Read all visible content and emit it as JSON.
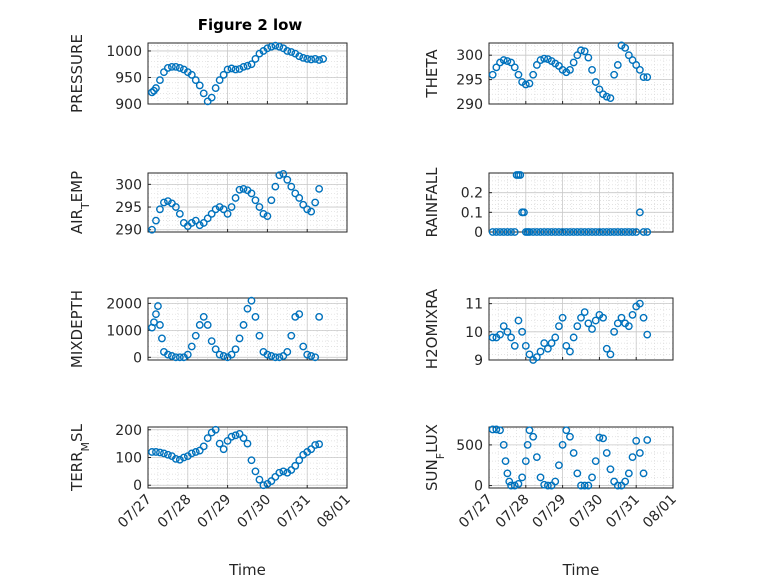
{
  "title": "Figure 2 low",
  "marker_color": "#0072BD",
  "x_tick_labels": [
    "07/27",
    "07/28",
    "07/29",
    "07/30",
    "07/31",
    "08/01"
  ],
  "chart_data": [
    {
      "type": "scatter",
      "ylabel": "PRESSURE",
      "ylim": [
        900,
        1015
      ],
      "yticks": [
        900,
        950,
        1000
      ],
      "xlabel": "Time",
      "grid": "on",
      "x": [
        0.1,
        0.15,
        0.2,
        0.3,
        0.4,
        0.5,
        0.6,
        0.7,
        0.8,
        0.9,
        1.0,
        1.1,
        1.2,
        1.3,
        1.4,
        1.5,
        1.6,
        1.7,
        1.8,
        1.9,
        2.0,
        2.1,
        2.2,
        2.3,
        2.4,
        2.5,
        2.6,
        2.7,
        2.8,
        2.9,
        3.0,
        3.1,
        3.2,
        3.3,
        3.4,
        3.5,
        3.6,
        3.7,
        3.8,
        3.9,
        4.0,
        4.1,
        4.2,
        4.3,
        4.4
      ],
      "y": [
        922,
        925,
        930,
        945,
        960,
        968,
        970,
        970,
        968,
        965,
        960,
        955,
        945,
        935,
        920,
        905,
        912,
        930,
        945,
        955,
        965,
        967,
        965,
        966,
        970,
        972,
        975,
        985,
        995,
        1000,
        1005,
        1008,
        1010,
        1008,
        1005,
        1000,
        998,
        995,
        990,
        987,
        985,
        984,
        985,
        983,
        985
      ]
    },
    {
      "type": "scatter",
      "ylabel": "THETA",
      "ylim": [
        290,
        302.5
      ],
      "yticks": [
        290,
        295,
        300
      ],
      "grid": "on",
      "x": [
        0.1,
        0.2,
        0.3,
        0.4,
        0.5,
        0.6,
        0.7,
        0.8,
        0.9,
        1.0,
        1.1,
        1.2,
        1.3,
        1.4,
        1.5,
        1.6,
        1.7,
        1.8,
        1.9,
        2.0,
        2.1,
        2.2,
        2.3,
        2.4,
        2.5,
        2.6,
        2.7,
        2.8,
        2.9,
        3.0,
        3.1,
        3.2,
        3.3,
        3.4,
        3.5,
        3.6,
        3.7,
        3.8,
        3.9,
        4.0,
        4.1,
        4.2,
        4.3
      ],
      "y": [
        296,
        297.5,
        298.5,
        299,
        298.8,
        298.5,
        297.5,
        296,
        294.5,
        294,
        294.2,
        296,
        298,
        299,
        299.3,
        299.2,
        298.8,
        298.3,
        297.8,
        297,
        296.5,
        297,
        298.5,
        300,
        301,
        300.8,
        299.5,
        297,
        294.5,
        293,
        292,
        291.5,
        291.2,
        296,
        298,
        302,
        301.5,
        300,
        299,
        298,
        297,
        295.5,
        295.5
      ]
    },
    {
      "type": "scatter",
      "ylabel": "AIR_TEMP",
      "ylim": [
        289.5,
        302.5
      ],
      "yticks": [
        290,
        295,
        300
      ],
      "grid": "on",
      "x": [
        0.1,
        0.2,
        0.3,
        0.4,
        0.5,
        0.6,
        0.7,
        0.8,
        0.9,
        1.0,
        1.1,
        1.2,
        1.3,
        1.4,
        1.5,
        1.6,
        1.7,
        1.8,
        1.9,
        2.0,
        2.1,
        2.2,
        2.3,
        2.4,
        2.5,
        2.6,
        2.7,
        2.8,
        2.9,
        3.0,
        3.1,
        3.2,
        3.3,
        3.4,
        3.5,
        3.6,
        3.7,
        3.8,
        3.9,
        4.0,
        4.1,
        4.2,
        4.3
      ],
      "y": [
        290,
        292,
        294.5,
        296,
        296.3,
        295.8,
        295,
        293.5,
        291.5,
        290.8,
        291.5,
        292,
        291,
        291.5,
        292.5,
        293.5,
        294.5,
        295,
        294.5,
        293.5,
        295,
        297,
        298.8,
        299,
        298.7,
        298,
        296.5,
        295,
        293.5,
        293,
        296.5,
        299.5,
        302,
        302.3,
        301,
        299.5,
        298,
        297,
        295.5,
        294.5,
        294,
        296,
        299
      ]
    },
    {
      "type": "scatter",
      "ylabel": "RAINFALL",
      "ylim": [
        0,
        0.3
      ],
      "yticks": [
        0,
        0.1,
        0.2
      ],
      "ytick_labels": [
        "0",
        "0.1",
        "0.2"
      ],
      "grid": "on",
      "x": [
        0.1,
        0.2,
        0.3,
        0.4,
        0.5,
        0.6,
        0.7,
        0.75,
        0.8,
        0.85,
        0.9,
        0.95,
        1.0,
        1.05,
        1.1,
        1.2,
        1.3,
        1.4,
        1.5,
        1.6,
        1.7,
        1.8,
        1.9,
        2.0,
        2.1,
        2.2,
        2.3,
        2.4,
        2.5,
        2.6,
        2.7,
        2.8,
        2.9,
        3.0,
        3.1,
        3.2,
        3.3,
        3.4,
        3.5,
        3.6,
        3.7,
        3.8,
        3.9,
        4.0,
        4.1,
        4.2,
        4.3
      ],
      "y": [
        0,
        0,
        0,
        0,
        0,
        0,
        0,
        0.29,
        0.29,
        0.29,
        0.1,
        0.1,
        0,
        0,
        0,
        0,
        0,
        0,
        0,
        0,
        0,
        0,
        0,
        0,
        0,
        0,
        0,
        0,
        0,
        0,
        0,
        0,
        0,
        0,
        0,
        0,
        0,
        0,
        0,
        0,
        0,
        0,
        0,
        0,
        0.1,
        0,
        0
      ]
    },
    {
      "type": "scatter",
      "ylabel": "MIXDEPTH",
      "ylim": [
        -100,
        2200
      ],
      "yticks": [
        0,
        1000,
        2000
      ],
      "grid": "on",
      "x": [
        0.1,
        0.15,
        0.2,
        0.25,
        0.3,
        0.35,
        0.4,
        0.5,
        0.6,
        0.7,
        0.8,
        0.9,
        1.0,
        1.1,
        1.2,
        1.3,
        1.4,
        1.5,
        1.6,
        1.7,
        1.8,
        1.9,
        2.0,
        2.1,
        2.2,
        2.3,
        2.4,
        2.5,
        2.6,
        2.7,
        2.8,
        2.9,
        3.0,
        3.1,
        3.2,
        3.3,
        3.4,
        3.5,
        3.6,
        3.7,
        3.8,
        3.9,
        4.0,
        4.1,
        4.2,
        4.3
      ],
      "y": [
        1100,
        1300,
        1600,
        1900,
        1200,
        700,
        200,
        100,
        50,
        0,
        0,
        0,
        100,
        400,
        800,
        1200,
        1500,
        1200,
        600,
        300,
        100,
        50,
        0,
        100,
        300,
        700,
        1200,
        1800,
        2100,
        1500,
        800,
        200,
        100,
        50,
        0,
        0,
        50,
        200,
        800,
        1500,
        1600,
        400,
        100,
        50,
        0,
        1500
      ]
    },
    {
      "type": "scatter",
      "ylabel": "H2OMIXRA",
      "ylim": [
        9,
        11.2
      ],
      "yticks": [
        9,
        10,
        11
      ],
      "grid": "on",
      "x": [
        0.1,
        0.2,
        0.3,
        0.4,
        0.5,
        0.6,
        0.7,
        0.8,
        0.9,
        1.0,
        1.1,
        1.2,
        1.3,
        1.4,
        1.5,
        1.6,
        1.7,
        1.8,
        1.9,
        2.0,
        2.1,
        2.2,
        2.3,
        2.4,
        2.5,
        2.6,
        2.7,
        2.8,
        2.9,
        3.0,
        3.1,
        3.2,
        3.3,
        3.4,
        3.5,
        3.6,
        3.7,
        3.8,
        3.9,
        4.0,
        4.1,
        4.2,
        4.3
      ],
      "y": [
        9.8,
        9.8,
        9.9,
        10.2,
        10.0,
        9.8,
        9.5,
        10.4,
        10.0,
        9.5,
        9.2,
        9.0,
        9.1,
        9.3,
        9.6,
        9.4,
        9.6,
        9.8,
        10.2,
        10.5,
        9.5,
        9.3,
        9.8,
        10.2,
        10.5,
        10.7,
        10.3,
        10.1,
        10.4,
        10.6,
        10.5,
        9.4,
        9.2,
        10.0,
        10.3,
        10.5,
        10.3,
        10.2,
        10.6,
        10.9,
        11.0,
        10.5,
        9.9
      ]
    },
    {
      "type": "scatter",
      "ylabel": "TERR_MSL",
      "ylim": [
        -10,
        210
      ],
      "yticks": [
        0,
        100,
        200
      ],
      "xlabel": "Time",
      "grid": "on",
      "x": [
        0.1,
        0.2,
        0.3,
        0.4,
        0.5,
        0.6,
        0.7,
        0.8,
        0.9,
        1.0,
        1.1,
        1.2,
        1.3,
        1.4,
        1.5,
        1.6,
        1.7,
        1.8,
        1.9,
        2.0,
        2.1,
        2.2,
        2.3,
        2.4,
        2.5,
        2.6,
        2.7,
        2.8,
        2.9,
        3.0,
        3.1,
        3.2,
        3.3,
        3.4,
        3.5,
        3.6,
        3.7,
        3.8,
        3.9,
        4.0,
        4.1,
        4.2,
        4.3
      ],
      "y": [
        120,
        120,
        118,
        115,
        110,
        105,
        95,
        92,
        100,
        105,
        115,
        120,
        125,
        140,
        170,
        190,
        200,
        150,
        130,
        160,
        175,
        180,
        185,
        170,
        150,
        90,
        50,
        20,
        0,
        5,
        15,
        30,
        45,
        50,
        45,
        55,
        70,
        90,
        110,
        120,
        130,
        145,
        148
      ]
    },
    {
      "type": "scatter",
      "ylabel": "SUN_FLUX",
      "ylim": [
        -30,
        720
      ],
      "yticks": [
        0,
        500
      ],
      "xlabel": "Time",
      "grid": "on",
      "x": [
        0.1,
        0.2,
        0.3,
        0.4,
        0.45,
        0.5,
        0.55,
        0.6,
        0.7,
        0.8,
        0.9,
        1.0,
        1.05,
        1.1,
        1.2,
        1.3,
        1.4,
        1.5,
        1.6,
        1.7,
        1.8,
        1.9,
        2.0,
        2.1,
        2.2,
        2.3,
        2.4,
        2.5,
        2.6,
        2.7,
        2.8,
        2.9,
        3.0,
        3.1,
        3.2,
        3.3,
        3.4,
        3.5,
        3.6,
        3.7,
        3.8,
        3.9,
        4.0,
        4.1,
        4.2,
        4.3
      ],
      "y": [
        690,
        690,
        680,
        500,
        300,
        150,
        50,
        0,
        0,
        20,
        100,
        300,
        500,
        680,
        600,
        350,
        100,
        10,
        0,
        0,
        50,
        250,
        500,
        680,
        600,
        400,
        150,
        0,
        0,
        0,
        100,
        300,
        590,
        580,
        400,
        200,
        50,
        0,
        0,
        50,
        150,
        350,
        550,
        400,
        150,
        560
      ]
    }
  ]
}
